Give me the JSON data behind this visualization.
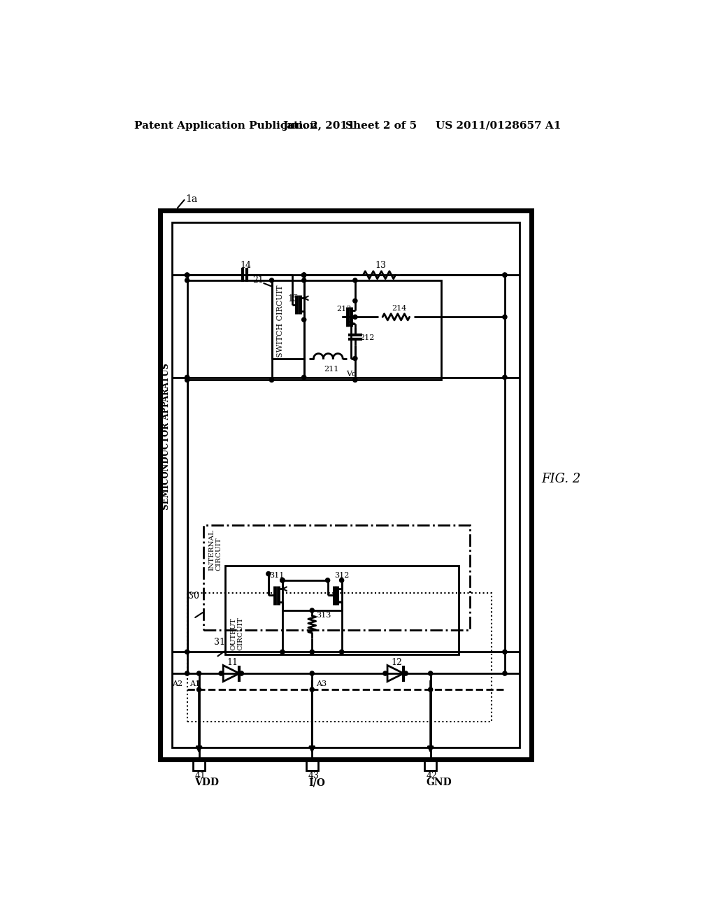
{
  "bg_color": "#ffffff",
  "line_color": "#000000",
  "header_text": "Patent Application Publication",
  "header_date": "Jun. 2, 2011",
  "header_sheet": "Sheet 2 of 5",
  "header_patent": "US 2011/0128657 A1",
  "fig_label": "FIG. 2"
}
